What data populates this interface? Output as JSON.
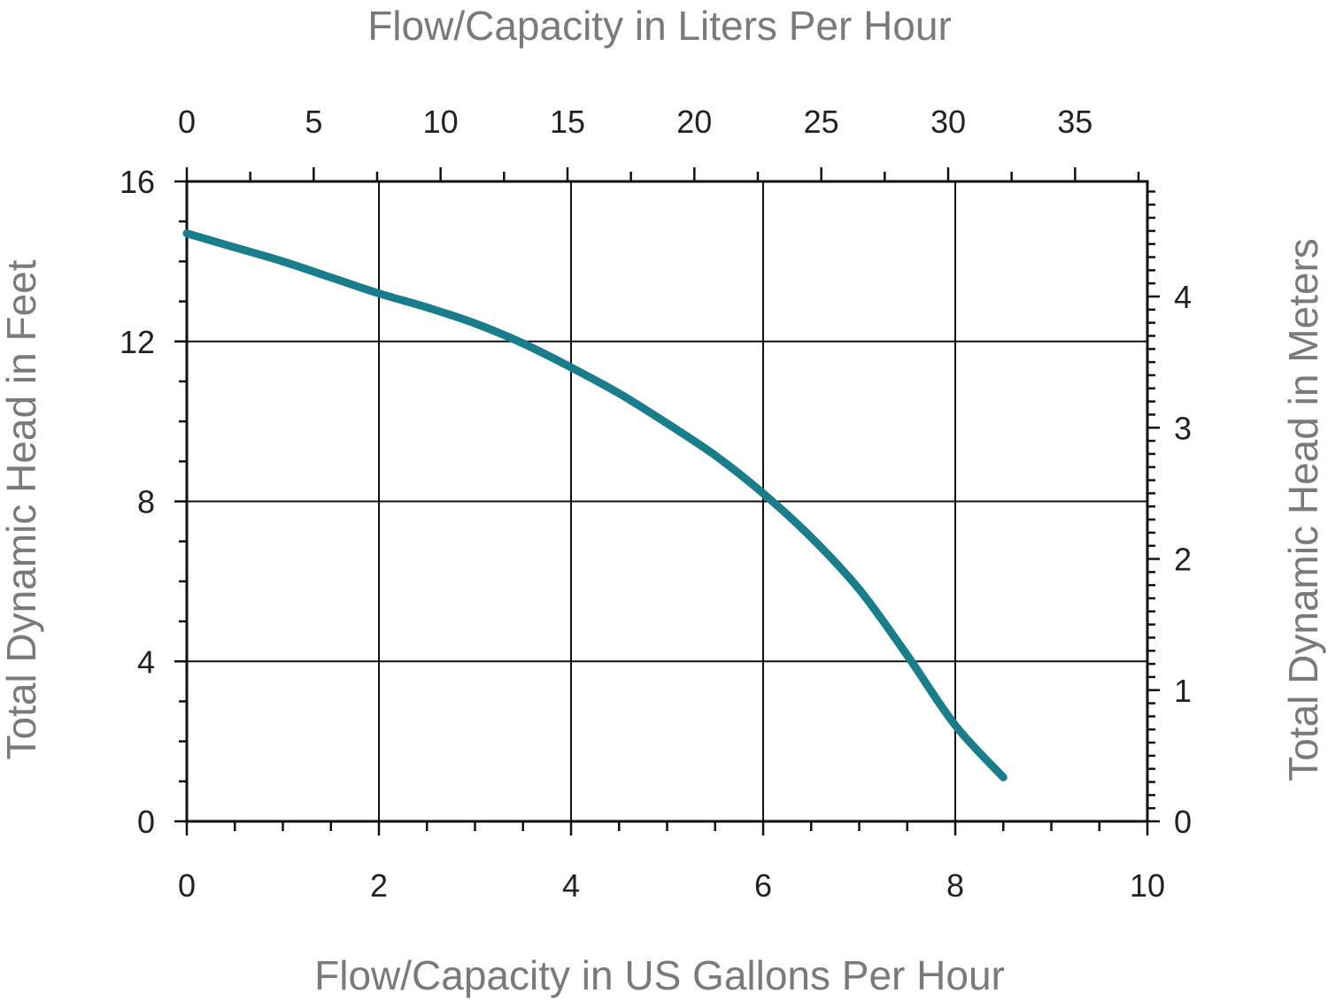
{
  "chart_data": {
    "type": "line",
    "title": "",
    "xlabel": "Flow/Capacity in US Gallons Per Hour",
    "ylabel": "Total Dynamic Head in Feet",
    "x2label": "Flow/Capacity in Liters Per Hour",
    "y2label": "Total Dynamic Head in Meters",
    "xlim": [
      0,
      10
    ],
    "ylim": [
      0,
      16
    ],
    "x2lim": [
      0,
      37.85
    ],
    "y2lim": [
      0,
      4.877
    ],
    "xticks": [
      "0",
      "2",
      "4",
      "6",
      "8",
      "10"
    ],
    "yticks": [
      "0",
      "4",
      "8",
      "12",
      "16"
    ],
    "x2ticks": [
      "0",
      "5",
      "10",
      "15",
      "20",
      "25",
      "30",
      "35"
    ],
    "y2ticks": [
      "0",
      "1",
      "2",
      "3",
      "4"
    ],
    "grid": true,
    "color": "#1a7d8c",
    "series": [
      {
        "x": [
          0,
          0.5,
          1,
          1.5,
          2,
          2.5,
          3,
          3.5,
          4,
          4.5,
          5,
          5.5,
          6,
          6.5,
          7,
          7.5,
          8,
          8.5
        ],
        "y": [
          14.7,
          14.35,
          14.0,
          13.6,
          13.2,
          12.85,
          12.45,
          11.95,
          11.35,
          10.7,
          9.95,
          9.15,
          8.2,
          7.1,
          5.8,
          4.15,
          2.4,
          1.1
        ]
      }
    ]
  }
}
